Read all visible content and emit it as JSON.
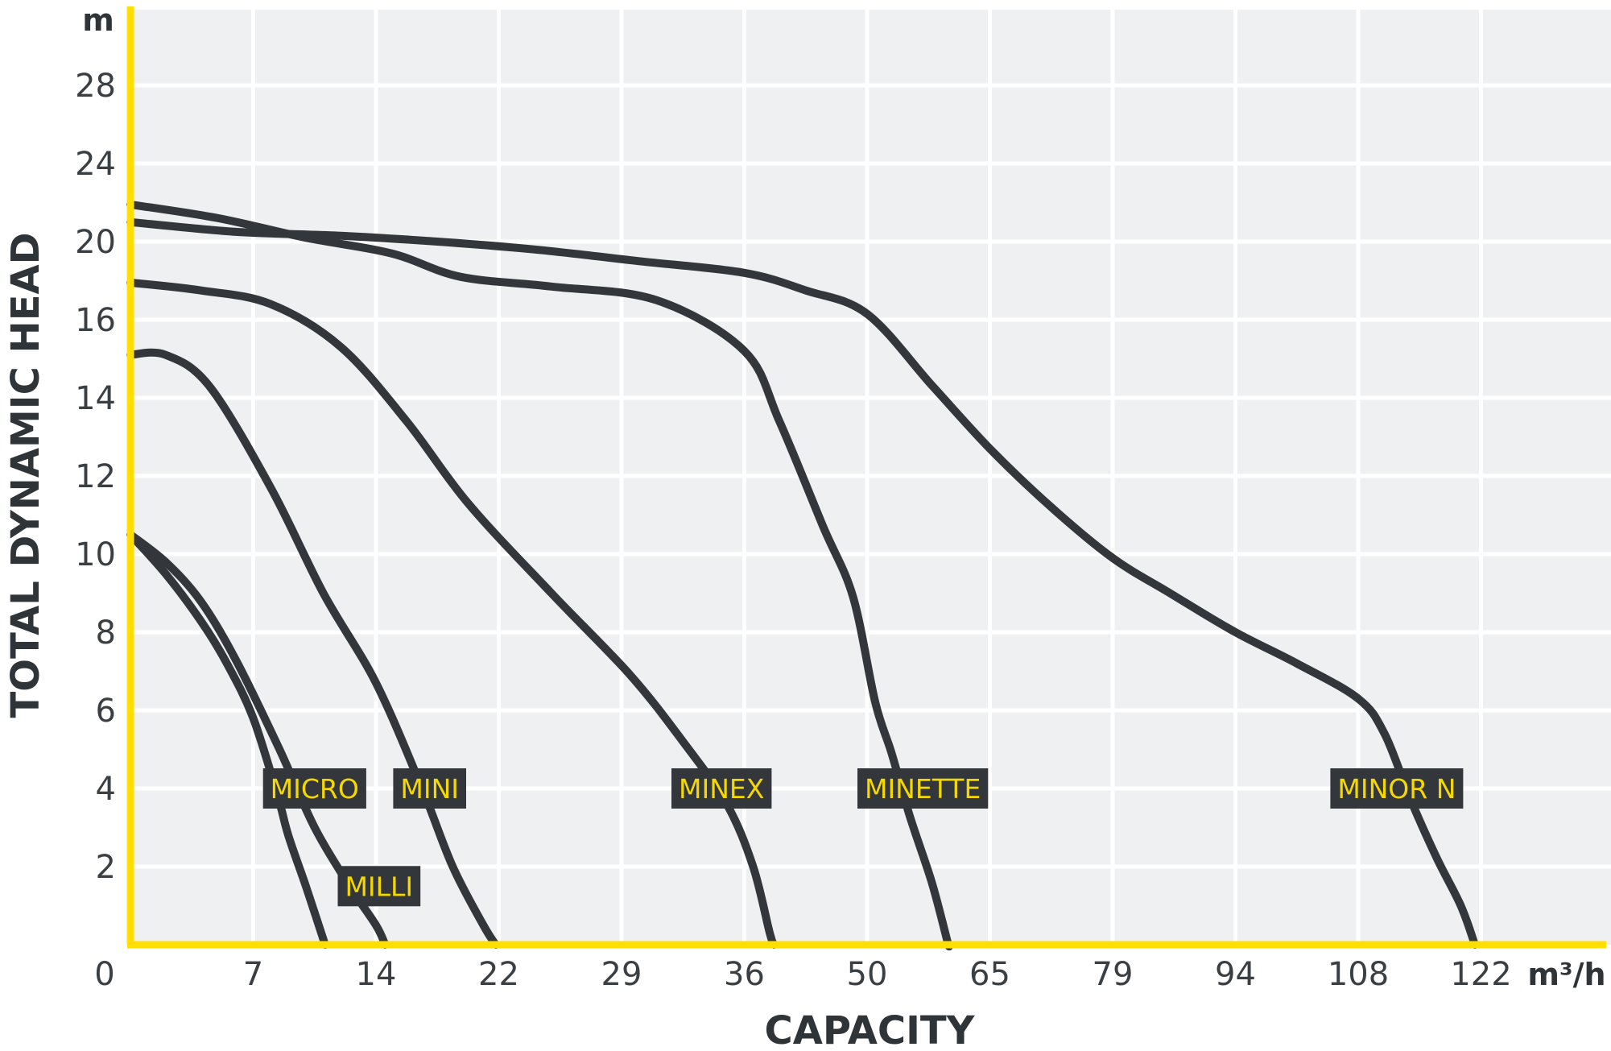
{
  "chart_data": {
    "type": "line",
    "xlabel": "CAPACITY",
    "ylabel": "TOTAL DYNAMIC HEAD",
    "x_unit": "m³/h",
    "y_unit": "m",
    "x_ticks": [
      "0",
      "7",
      "14",
      "22",
      "29",
      "36",
      "50",
      "65",
      "79",
      "94",
      "108",
      "122"
    ],
    "y_ticks": [
      "2",
      "4",
      "6",
      "8",
      "10",
      "12",
      "14",
      "16",
      "20",
      "24",
      "28"
    ],
    "grid": true,
    "colors": {
      "plot_bg": "#eff0f2",
      "grid": "#ffffff",
      "axis": "#ffde00",
      "curve": "#33373b",
      "label_bg": "#33373b",
      "label_text": "#f5d800",
      "tick_text": "#3a3f44"
    },
    "series": [
      {
        "name": "MICRO",
        "label_at": [
          10.5,
          4
        ],
        "points": [
          [
            0,
            10.5
          ],
          [
            2,
            9.5
          ],
          [
            4,
            8.3
          ],
          [
            5.5,
            7.2
          ],
          [
            7,
            5.8
          ],
          [
            8.4,
            3.8
          ],
          [
            9,
            2.8
          ],
          [
            10,
            1.5
          ],
          [
            11.1,
            0
          ]
        ]
      },
      {
        "name": "MILLI",
        "label_at": [
          14.2,
          1.5
        ],
        "points": [
          [
            0,
            10.5
          ],
          [
            2,
            9.8
          ],
          [
            4,
            8.8
          ],
          [
            6,
            7.3
          ],
          [
            8.5,
            5
          ],
          [
            10.5,
            3
          ],
          [
            12.5,
            1.5
          ],
          [
            14,
            0.5
          ],
          [
            14.6,
            0
          ]
        ]
      },
      {
        "name": "MINI",
        "label_at": [
          17.5,
          4
        ],
        "points": [
          [
            0,
            15.1
          ],
          [
            2,
            15.1
          ],
          [
            4.5,
            14.3
          ],
          [
            8,
            11.7
          ],
          [
            11,
            9
          ],
          [
            14,
            6.7
          ],
          [
            17,
            4
          ],
          [
            19,
            2
          ],
          [
            21,
            0.5
          ],
          [
            21.8,
            0
          ]
        ]
      },
      {
        "name": "MINEX",
        "label_at": [
          34.7,
          4
        ],
        "points": [
          [
            0,
            17.9
          ],
          [
            4,
            17.5
          ],
          [
            8,
            16.8
          ],
          [
            12,
            15.3
          ],
          [
            16,
            13.4
          ],
          [
            20,
            11.3
          ],
          [
            25,
            9
          ],
          [
            29.5,
            6.9
          ],
          [
            32.5,
            5.2
          ],
          [
            35,
            3.6
          ],
          [
            37,
            2
          ],
          [
            38.9,
            0.3
          ],
          [
            39.4,
            0
          ]
        ]
      },
      {
        "name": "MINETTE",
        "label_at": [
          56.8,
          4
        ],
        "points": [
          [
            0,
            21.9
          ],
          [
            5,
            21.2
          ],
          [
            10,
            20.2
          ],
          [
            15,
            19.4
          ],
          [
            19.5,
            18.2
          ],
          [
            25,
            17.7
          ],
          [
            31,
            17
          ],
          [
            36,
            15.2
          ],
          [
            40,
            13.4
          ],
          [
            45,
            10.7
          ],
          [
            48.4,
            8.9
          ],
          [
            51,
            6.2
          ],
          [
            53,
            4.9
          ],
          [
            55.2,
            3.3
          ],
          [
            57.9,
            1.6
          ],
          [
            59.8,
            0.1
          ],
          [
            60,
            0
          ]
        ]
      },
      {
        "name": "MINOR N",
        "label_at": [
          112.4,
          4
        ],
        "points": [
          [
            0,
            21
          ],
          [
            6,
            20.5
          ],
          [
            12,
            20.3
          ],
          [
            18,
            20
          ],
          [
            24,
            19.6
          ],
          [
            30,
            19
          ],
          [
            36,
            18.4
          ],
          [
            43,
            17.5
          ],
          [
            50,
            16.3
          ],
          [
            58,
            14.3
          ],
          [
            65,
            12.7
          ],
          [
            72,
            11.2
          ],
          [
            79,
            9.9
          ],
          [
            86,
            9
          ],
          [
            94,
            8
          ],
          [
            101,
            7.2
          ],
          [
            108,
            6.3
          ],
          [
            111,
            5.4
          ],
          [
            114,
            3.7
          ],
          [
            117,
            2.2
          ],
          [
            119.7,
            1
          ],
          [
            121.3,
            0
          ]
        ]
      }
    ]
  }
}
